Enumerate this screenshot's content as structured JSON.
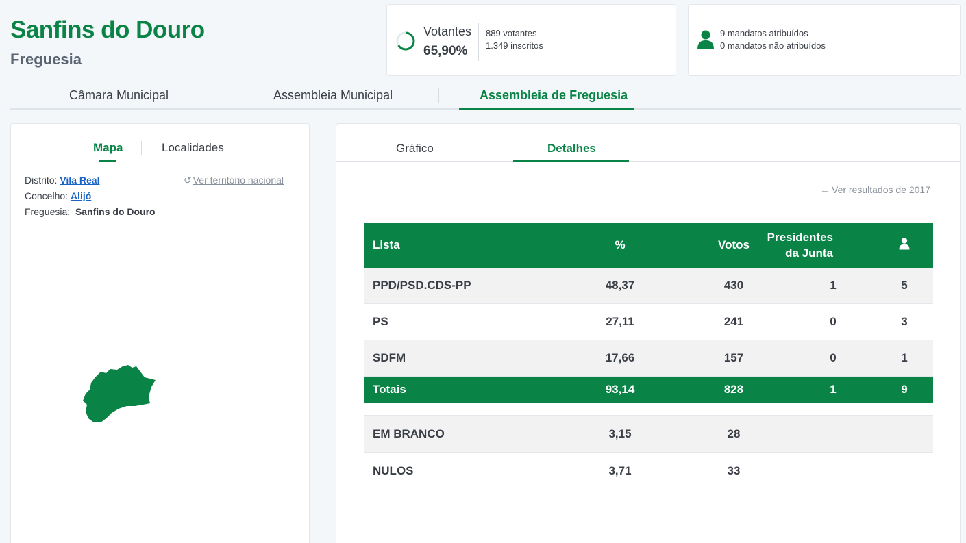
{
  "header": {
    "title": "Sanfins do Douro",
    "subtitle": "Freguesia"
  },
  "votes": {
    "label": "Votantes",
    "percent": "65,90%",
    "participation_fraction": 0.659,
    "voters": "889 votantes",
    "registered": "1.349 inscritos"
  },
  "mandates": {
    "assigned": "9 mandatos atribuídos",
    "unassigned": "0 mandatos não atribuídos",
    "icon": "person-icon"
  },
  "main_tabs": [
    {
      "label": "Câmara Municipal",
      "active": false
    },
    {
      "label": "Assembleia Municipal",
      "active": false
    },
    {
      "label": "Assembleia de Freguesia",
      "active": true
    }
  ],
  "left_panel": {
    "tabs": [
      {
        "label": "Mapa",
        "active": true
      },
      {
        "label": "Localidades",
        "active": false
      }
    ],
    "distrito_label": "Distrito:",
    "distrito_value": "Vila Real",
    "concelho_label": "Concelho:",
    "concelho_value": "Alijó",
    "freguesia_label": "Freguesia:",
    "freguesia_value": "Sanfins do Douro",
    "national_link": "Ver território nacional",
    "map_color": "#0a8446"
  },
  "right_panel": {
    "tabs": [
      {
        "label": "Gráfico",
        "active": false
      },
      {
        "label": "Detalhes",
        "active": true
      }
    ],
    "previous_link": "Ver resultados de 2017",
    "table": {
      "headers": {
        "lista": "Lista",
        "pct": "%",
        "votos": "Votos",
        "presidentes_line1": "Presidentes",
        "presidentes_line2": "da Junta",
        "mandatos_icon": "person-icon"
      },
      "rows": [
        {
          "lista": "PPD/PSD.CDS-PP",
          "pct": "48,37",
          "votos": "430",
          "pres": "1",
          "mand": "5"
        },
        {
          "lista": "PS",
          "pct": "27,11",
          "votos": "241",
          "pres": "0",
          "mand": "3"
        },
        {
          "lista": "SDFM",
          "pct": "17,66",
          "votos": "157",
          "pres": "0",
          "mand": "1"
        }
      ],
      "totals": {
        "lista": "Totais",
        "pct": "93,14",
        "votos": "828",
        "pres": "1",
        "mand": "9"
      },
      "extra_rows": [
        {
          "lista": "EM BRANCO",
          "pct": "3,15",
          "votos": "28"
        },
        {
          "lista": "NULOS",
          "pct": "3,71",
          "votos": "33"
        }
      ]
    }
  },
  "colors": {
    "accent": "#0a8446",
    "link": "#1a63c7"
  }
}
